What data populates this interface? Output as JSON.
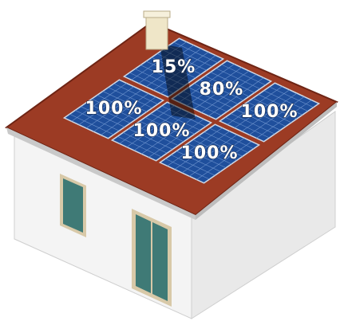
{
  "panels": [
    {
      "label": "15%"
    },
    {
      "label": "80%"
    },
    {
      "label": "100%"
    },
    {
      "label": "100%"
    },
    {
      "label": "100%"
    },
    {
      "label": "100%"
    }
  ]
}
